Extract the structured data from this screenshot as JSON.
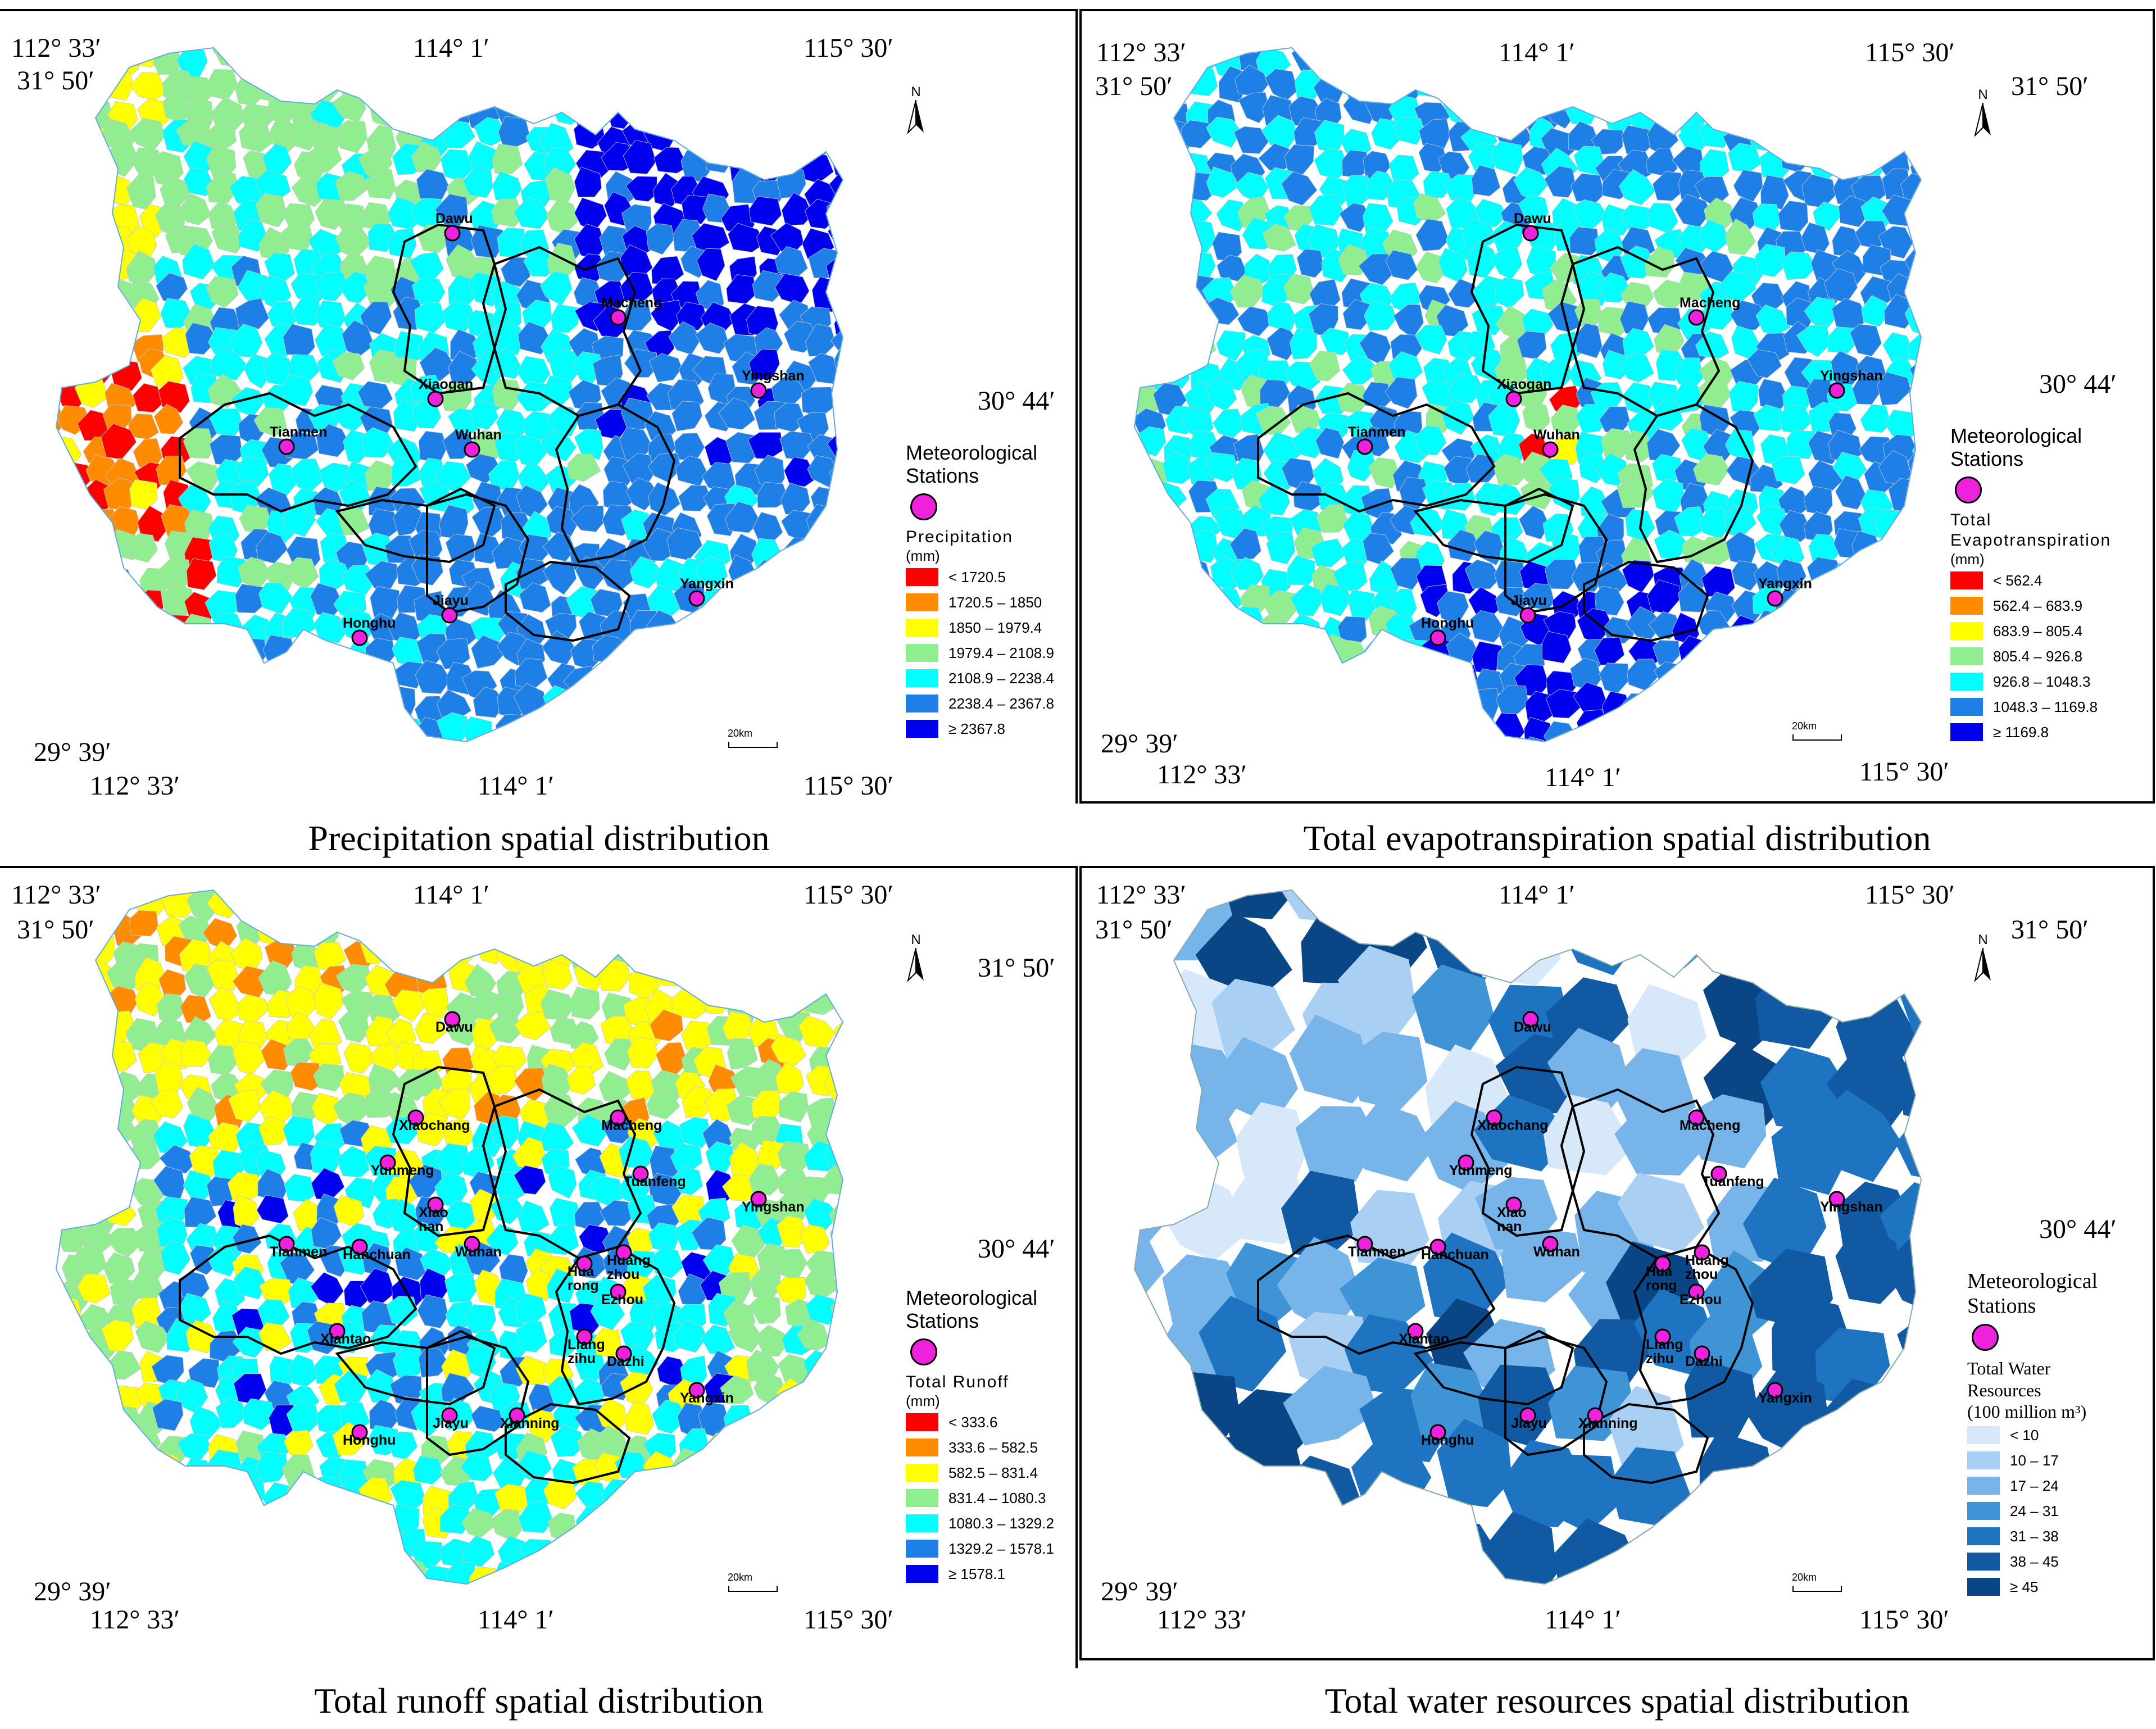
{
  "coords": {
    "lon_w": "112° 33′",
    "lon_c": "114° 1′",
    "lon_e": "115° 30′",
    "lat_n": "31° 50′",
    "lat_m": "30° 44′",
    "lat_s": "29° 39′"
  },
  "north_label": "N",
  "scale_label": "20km",
  "legend_common": {
    "stations_heading": "Meteorological\nStations"
  },
  "panels": [
    {
      "id": "precipitation",
      "caption": "Precipitation spatial distribution",
      "variable": "Precipitation",
      "unit": "(mm)",
      "classes": [
        {
          "label": "< 1720.5",
          "color": "#ff0000"
        },
        {
          "label": "1720.5 – 1850",
          "color": "#ff8c00"
        },
        {
          "label": "1850 – 1979.4",
          "color": "#ffff00"
        },
        {
          "label": "1979.4 – 2108.9",
          "color": "#90ee90"
        },
        {
          "label": "2108.9 – 2238.4",
          "color": "#00ffff"
        },
        {
          "label": "2238.4 – 2367.8",
          "color": "#1e7fe6"
        },
        {
          "label": "≥ 2367.8",
          "color": "#0000ee"
        }
      ],
      "stations": [
        "Dawu",
        "Macheng",
        "Xiaogan",
        "Tianmen",
        "Wuhan",
        "Yingshan",
        "Honghu",
        "Jiayu",
        "Yangxin"
      ]
    },
    {
      "id": "evapotranspiration",
      "caption": "Total evapotranspiration spatial distribution",
      "variable": "Total\nEvapotranspiration",
      "unit": "(mm)",
      "classes": [
        {
          "label": "< 562.4",
          "color": "#ff0000"
        },
        {
          "label": "562.4 – 683.9",
          "color": "#ff8c00"
        },
        {
          "label": "683.9 – 805.4",
          "color": "#ffff00"
        },
        {
          "label": "805.4 – 926.8",
          "color": "#90ee90"
        },
        {
          "label": "926.8 – 1048.3",
          "color": "#00ffff"
        },
        {
          "label": "1048.3 – 1169.8",
          "color": "#1e7fe6"
        },
        {
          "label": "≥ 1169.8",
          "color": "#0000ee"
        }
      ],
      "stations": [
        "Dawu",
        "Macheng",
        "Xiaogan",
        "Yingshan",
        "Tianmen",
        "Wuhan",
        "Yangxin",
        "Honghu",
        "Jiayu"
      ]
    },
    {
      "id": "runoff",
      "caption": "Total runoff spatial distribution",
      "variable": "Total Runoff",
      "unit": "(mm)",
      "classes": [
        {
          "label": "< 333.6",
          "color": "#ff0000"
        },
        {
          "label": "333.6 – 582.5",
          "color": "#ff8c00"
        },
        {
          "label": "582.5 – 831.4",
          "color": "#ffff00"
        },
        {
          "label": "831.4 – 1080.3",
          "color": "#90ee90"
        },
        {
          "label": "1080.3 – 1329.2",
          "color": "#00ffff"
        },
        {
          "label": "1329.2 – 1578.1",
          "color": "#1e7fe6"
        },
        {
          "label": "≥ 1578.1",
          "color": "#0000ee"
        }
      ],
      "stations": [
        "Dawu",
        "Macheng",
        "Xiaochang",
        "Yunmeng",
        "Xiao\nnan",
        "Yingshan",
        "Tuanfeng",
        "Tianmen",
        "Hanchuan",
        "Wuhan",
        "Huang\nzhou",
        "Hua\nrong",
        "Ezhou",
        "Liang\nzihu",
        "Xiantao",
        "Dazhi",
        "Yangxin",
        "Honghu",
        "Jiayu",
        "Xianning"
      ]
    },
    {
      "id": "water_resources",
      "caption": "Total water resources spatial distribution",
      "variable": "Total Water\nResources\n(100 million m³)",
      "unit": "",
      "classes": [
        {
          "label": "< 10",
          "color": "#d6e8fa"
        },
        {
          "label": "10 – 17",
          "color": "#a9d0f2"
        },
        {
          "label": "17 – 24",
          "color": "#76b4ea"
        },
        {
          "label": "24 – 31",
          "color": "#3f94d6"
        },
        {
          "label": "31 – 38",
          "color": "#1e74c0"
        },
        {
          "label": "38 – 45",
          "color": "#115aa3"
        },
        {
          "label": "≥ 45",
          "color": "#0a4585"
        }
      ],
      "stations": [
        "Dawu",
        "Macheng",
        "Xiaochang",
        "Yunmeng",
        "Xiao\nnan",
        "Yingshan",
        "Tuanfeng",
        "Tianmen",
        "Hanchuan",
        "Wuhan",
        "Huang\nzhou",
        "Hua\nrong",
        "Ezhou",
        "Liang\nzihu",
        "Xiantao",
        "Dazhi",
        "Yangxin",
        "Honghu",
        "Jiayu",
        "Xianning"
      ]
    }
  ]
}
